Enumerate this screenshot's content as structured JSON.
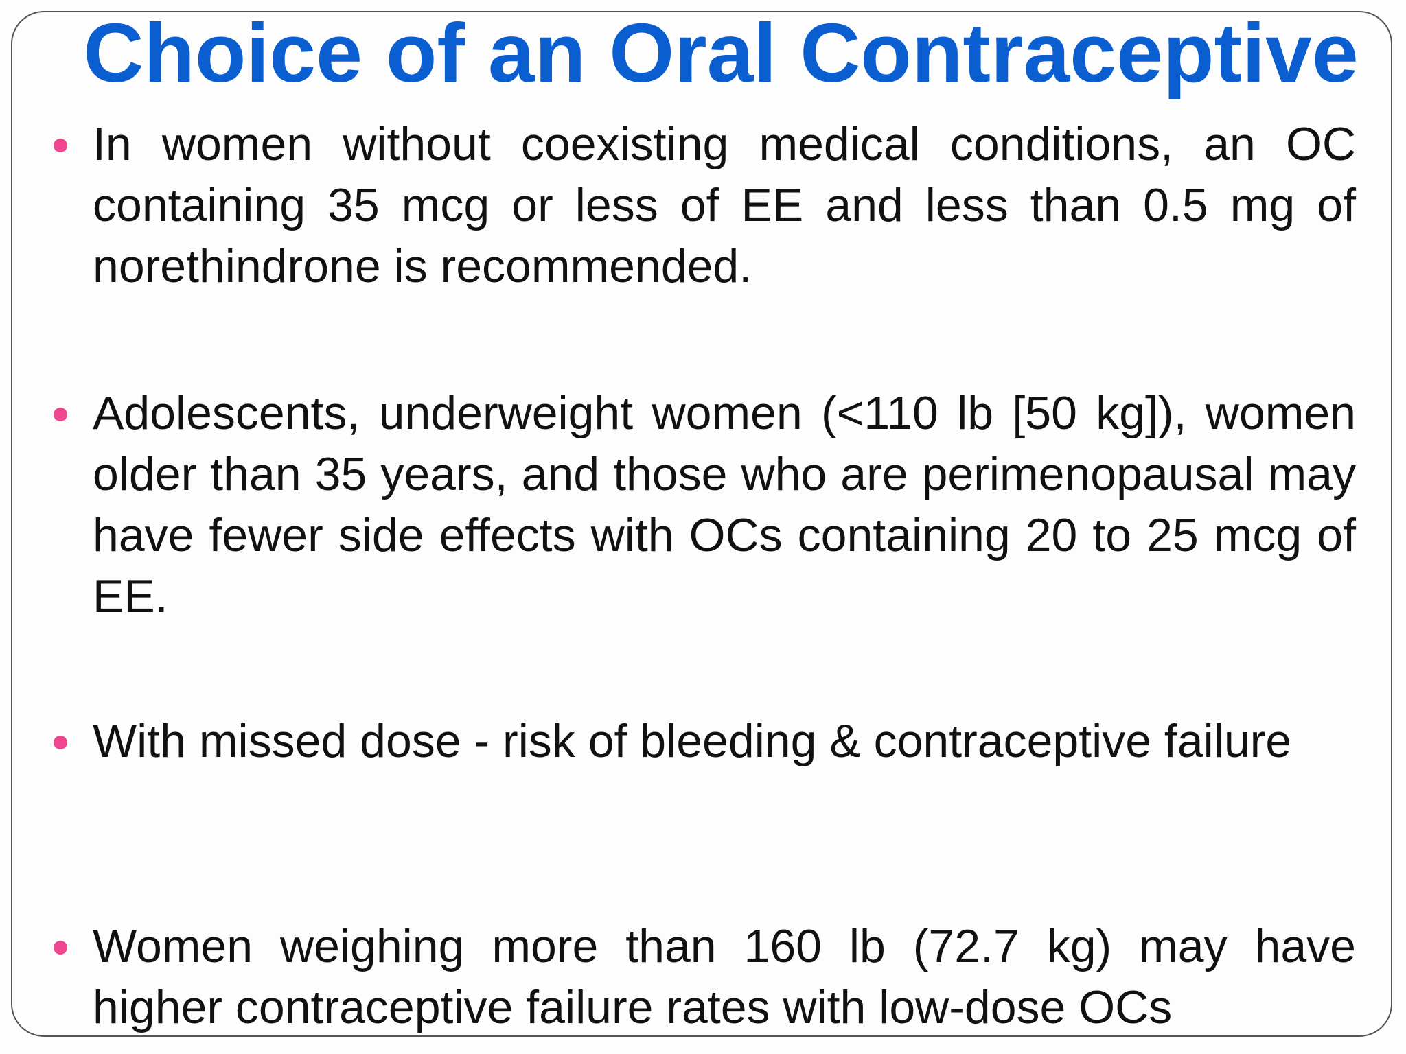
{
  "slide": {
    "title": "Choice of an Oral Contraceptive",
    "bullets": [
      "In women without coexisting medical conditions, an OC containing 35 mcg or less of EE and less than 0.5 mg of norethindrone is recommended.",
      "Adolescents, underweight women (<110 lb [50 kg]), women older than 35 years, and those who are perimenopausal may have fewer side effects with OCs containing 20 to 25 mcg of EE.",
      "With missed dose - risk of bleeding & contraceptive failure",
      "Women weighing more than 160 lb (72.7 kg) may have higher contraceptive failure rates with low-dose OCs"
    ]
  }
}
